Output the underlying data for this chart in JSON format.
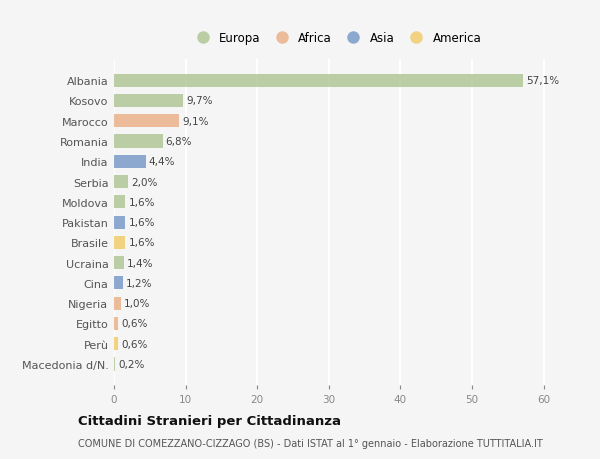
{
  "countries": [
    "Albania",
    "Kosovo",
    "Marocco",
    "Romania",
    "India",
    "Serbia",
    "Moldova",
    "Pakistan",
    "Brasile",
    "Ucraina",
    "Cina",
    "Nigeria",
    "Egitto",
    "Perù",
    "Macedonia d/N."
  ],
  "values": [
    57.1,
    9.7,
    9.1,
    6.8,
    4.4,
    2.0,
    1.6,
    1.6,
    1.6,
    1.4,
    1.2,
    1.0,
    0.6,
    0.6,
    0.2
  ],
  "labels": [
    "57,1%",
    "9,7%",
    "9,1%",
    "6,8%",
    "4,4%",
    "2,0%",
    "1,6%",
    "1,6%",
    "1,6%",
    "1,4%",
    "1,2%",
    "1,0%",
    "0,6%",
    "0,6%",
    "0,2%"
  ],
  "continents": [
    "Europa",
    "Europa",
    "Africa",
    "Europa",
    "Asia",
    "Europa",
    "Europa",
    "Asia",
    "America",
    "Europa",
    "Asia",
    "Africa",
    "Africa",
    "America",
    "Europa"
  ],
  "continent_colors": {
    "Europa": "#a8c08a",
    "Africa": "#e8a87c",
    "Asia": "#6b8fc2",
    "America": "#f0c75a"
  },
  "legend_entries": [
    "Europa",
    "Africa",
    "Asia",
    "America"
  ],
  "legend_colors": [
    "#a8c08a",
    "#e8a87c",
    "#6b8fc2",
    "#f0c75a"
  ],
  "background_color": "#f5f5f5",
  "grid_color": "#ffffff",
  "title": "Cittadini Stranieri per Cittadinanza",
  "subtitle": "COMUNE DI COMEZZANO-CIZZAGO (BS) - Dati ISTAT al 1° gennaio - Elaborazione TUTTITALIA.IT",
  "xlim": [
    0,
    62
  ],
  "xticks": [
    0,
    10,
    20,
    30,
    40,
    50,
    60
  ],
  "bar_alpha": 0.75,
  "bar_height": 0.65
}
